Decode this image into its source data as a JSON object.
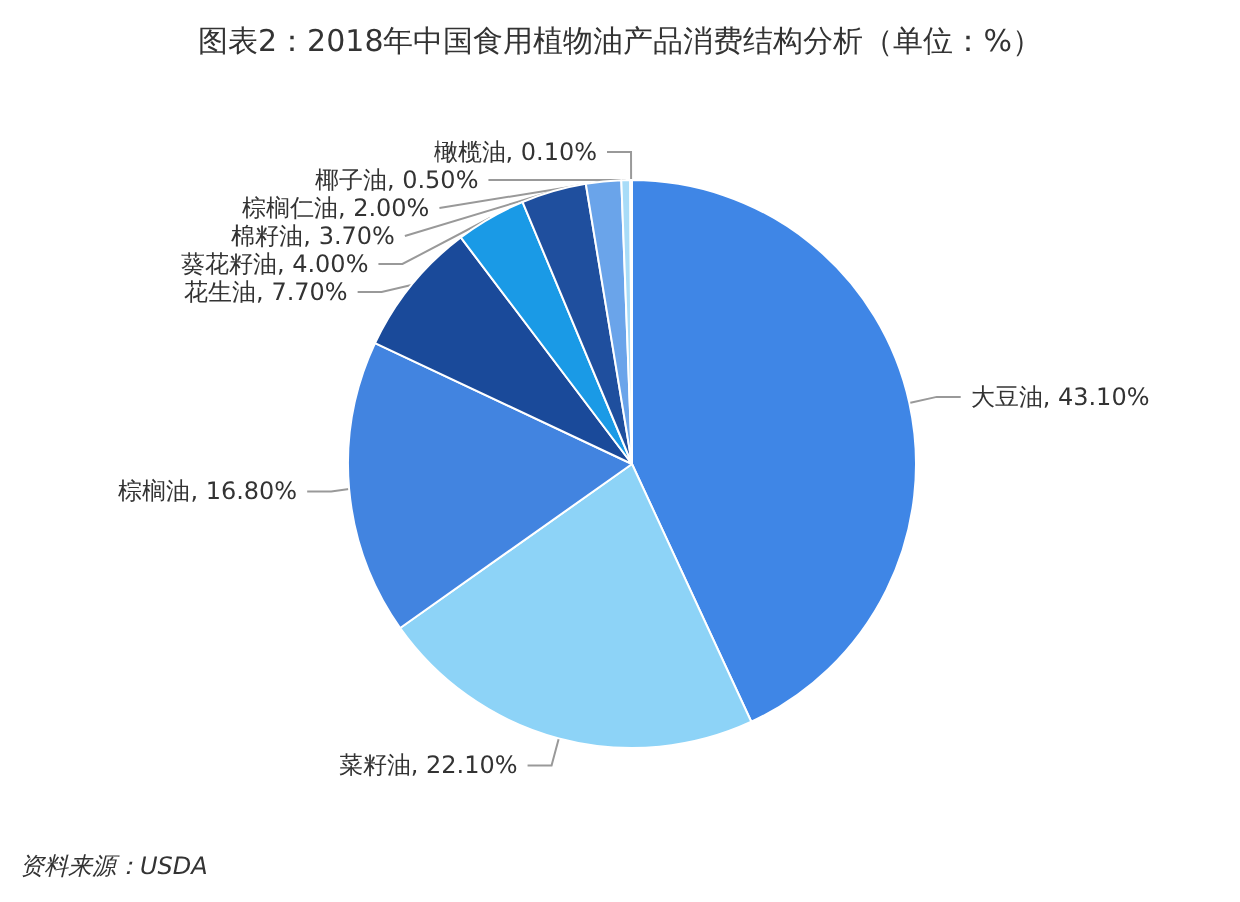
{
  "chart_data": {
    "type": "pie",
    "title": "图表2：2018年中国食用植物油产品消费结构分析（单位：%）",
    "categories": [
      "大豆油",
      "菜籽油",
      "棕榈油",
      "花生油",
      "葵花籽油",
      "棉籽油",
      "棕榈仁油",
      "椰子油",
      "橄榄油"
    ],
    "values": [
      43.1,
      22.1,
      16.8,
      7.7,
      4.0,
      3.7,
      2.0,
      0.5,
      0.1
    ],
    "value_labels": [
      "43.10%",
      "22.10%",
      "16.80%",
      "7.70%",
      "4.00%",
      "3.70%",
      "2.00%",
      "0.50%",
      "0.10%"
    ],
    "colors": [
      "#3f86e6",
      "#8dd3f7",
      "#4284e0",
      "#1a4a9a",
      "#1a9ae6",
      "#1f4f9e",
      "#6aa4ea",
      "#a8dcf8",
      "#c0c0c0"
    ],
    "annotations": [
      "资料来源：USDA"
    ],
    "legend": false
  }
}
